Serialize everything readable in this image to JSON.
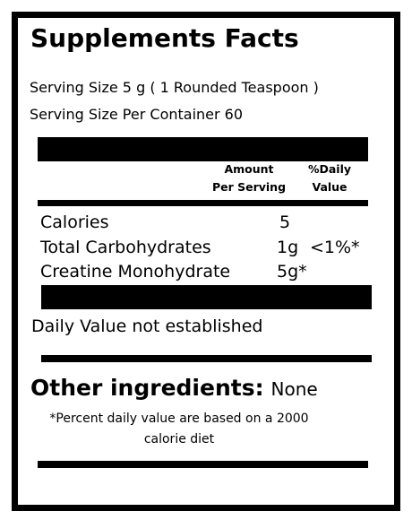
{
  "label": {
    "title": "Supplements Facts",
    "serving_size": "Serving Size 5 g ( 1 Rounded Teaspoon )",
    "servings_per_container": "Serving Size  Per Container  60",
    "columns": {
      "amount_line1": "Amount",
      "amount_line2": "Per Serving",
      "daily_line1": "%Daily",
      "daily_line2": "Value"
    },
    "rows": [
      {
        "name": "Calories",
        "amount": "5",
        "daily": ""
      },
      {
        "name": "Total  Carbohydrates",
        "amount": "1g",
        "daily": "<1%*"
      },
      {
        "name": "Creatine Monohydrate",
        "amount": "5g*",
        "daily": ""
      }
    ],
    "daily_value_note": "Daily Value not established",
    "other_ingredients_label": "Other ingredients:",
    "other_ingredients_value": "None",
    "footnote": "*Percent daily value are based on a 2000 calorie diet"
  }
}
